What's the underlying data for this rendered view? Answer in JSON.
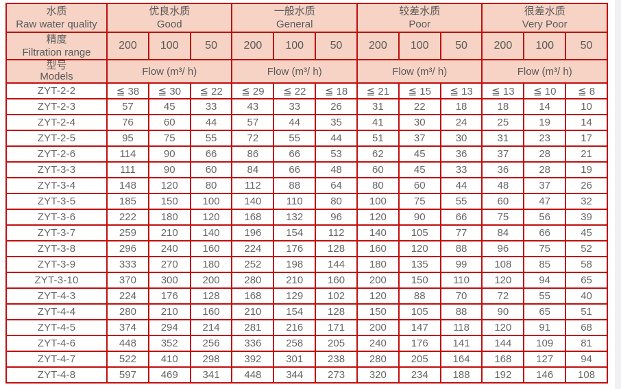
{
  "colors": {
    "border": "#c00f0f",
    "header_bg": "#f6d3c5",
    "header_text": "#595959",
    "cell_text": "#666666",
    "scrollbar_track": "#f1f1f3"
  },
  "table": {
    "corner": [
      {
        "zh": "水质",
        "en": "Raw water quality"
      },
      {
        "zh": "精度",
        "en": "Filtration range"
      },
      {
        "zh": "型号",
        "en": "Models"
      }
    ],
    "groups": [
      {
        "zh": "优良水质",
        "en": "Good"
      },
      {
        "zh": "一般水质",
        "en": "General"
      },
      {
        "zh": "较差水质",
        "en": "Poor"
      },
      {
        "zh": "很差水质",
        "en": "Very Poor"
      }
    ],
    "filtration_values": [
      "200",
      "100",
      "50"
    ],
    "flow_label": "Flow (m³/ h)",
    "rows": [
      {
        "model": "ZYT-2-2",
        "values": [
          "≦ 38",
          "≦ 30",
          "≦ 22",
          "≦ 29",
          "≦ 22",
          "≦ 18",
          "≦ 21",
          "≦ 15",
          "≦ 13",
          "≦ 13",
          "≦ 10",
          "≦ 8"
        ]
      },
      {
        "model": "ZYT-2-3",
        "values": [
          "57",
          "45",
          "33",
          "43",
          "33",
          "26",
          "31",
          "22",
          "18",
          "18",
          "14",
          "10"
        ]
      },
      {
        "model": "ZYT-2-4",
        "values": [
          "76",
          "60",
          "44",
          "57",
          "44",
          "35",
          "41",
          "30",
          "24",
          "25",
          "19",
          "14"
        ]
      },
      {
        "model": "ZYT-2-5",
        "values": [
          "95",
          "75",
          "55",
          "72",
          "55",
          "44",
          "51",
          "37",
          "30",
          "31",
          "23",
          "17"
        ]
      },
      {
        "model": "ZYT-2-6",
        "values": [
          "114",
          "90",
          "66",
          "86",
          "66",
          "53",
          "62",
          "45",
          "36",
          "37",
          "28",
          "21"
        ]
      },
      {
        "model": "ZYT-3-3",
        "values": [
          "111",
          "90",
          "60",
          "84",
          "66",
          "48",
          "60",
          "45",
          "33",
          "36",
          "28",
          "19"
        ]
      },
      {
        "model": "ZYT-3-4",
        "values": [
          "148",
          "120",
          "80",
          "112",
          "88",
          "64",
          "80",
          "60",
          "44",
          "48",
          "37",
          "26"
        ]
      },
      {
        "model": "ZYT-3-5",
        "values": [
          "185",
          "150",
          "100",
          "140",
          "110",
          "80",
          "100",
          "75",
          "55",
          "60",
          "47",
          "32"
        ]
      },
      {
        "model": "ZYT-3-6",
        "values": [
          "222",
          "180",
          "120",
          "168",
          "132",
          "96",
          "120",
          "90",
          "66",
          "75",
          "56",
          "39"
        ]
      },
      {
        "model": "ZYT-3-7",
        "values": [
          "259",
          "210",
          "140",
          "196",
          "154",
          "112",
          "140",
          "105",
          "77",
          "84",
          "66",
          "45"
        ]
      },
      {
        "model": "ZYT-3-8",
        "values": [
          "296",
          "240",
          "160",
          "224",
          "176",
          "128",
          "160",
          "120",
          "88",
          "96",
          "75",
          "52"
        ]
      },
      {
        "model": "ZYT-3-9",
        "values": [
          "333",
          "270",
          "180",
          "252",
          "198",
          "144",
          "180",
          "135",
          "99",
          "108",
          "85",
          "58"
        ]
      },
      {
        "model": "ZYT-3-10",
        "values": [
          "370",
          "300",
          "200",
          "280",
          "210",
          "160",
          "200",
          "150",
          "110",
          "120",
          "94",
          "65"
        ]
      },
      {
        "model": "ZYT-4-3",
        "values": [
          "224",
          "176",
          "128",
          "168",
          "129",
          "102",
          "120",
          "88",
          "70",
          "72",
          "55",
          "40"
        ]
      },
      {
        "model": "ZYT-4-4",
        "values": [
          "280",
          "210",
          "160",
          "210",
          "154",
          "128",
          "150",
          "105",
          "88",
          "90",
          "65",
          "51"
        ]
      },
      {
        "model": "ZYT-4-5",
        "values": [
          "374",
          "294",
          "214",
          "281",
          "216",
          "171",
          "200",
          "147",
          "118",
          "120",
          "91",
          "68"
        ]
      },
      {
        "model": "ZYT-4-6",
        "values": [
          "448",
          "352",
          "256",
          "336",
          "258",
          "205",
          "240",
          "176",
          "141",
          "144",
          "109",
          "81"
        ]
      },
      {
        "model": "ZYT-4-7",
        "values": [
          "522",
          "410",
          "298",
          "392",
          "301",
          "238",
          "280",
          "205",
          "164",
          "168",
          "127",
          "94"
        ]
      },
      {
        "model": "ZYT-4-8",
        "values": [
          "597",
          "469",
          "341",
          "448",
          "344",
          "273",
          "320",
          "234",
          "188",
          "192",
          "146",
          "108"
        ]
      }
    ]
  }
}
